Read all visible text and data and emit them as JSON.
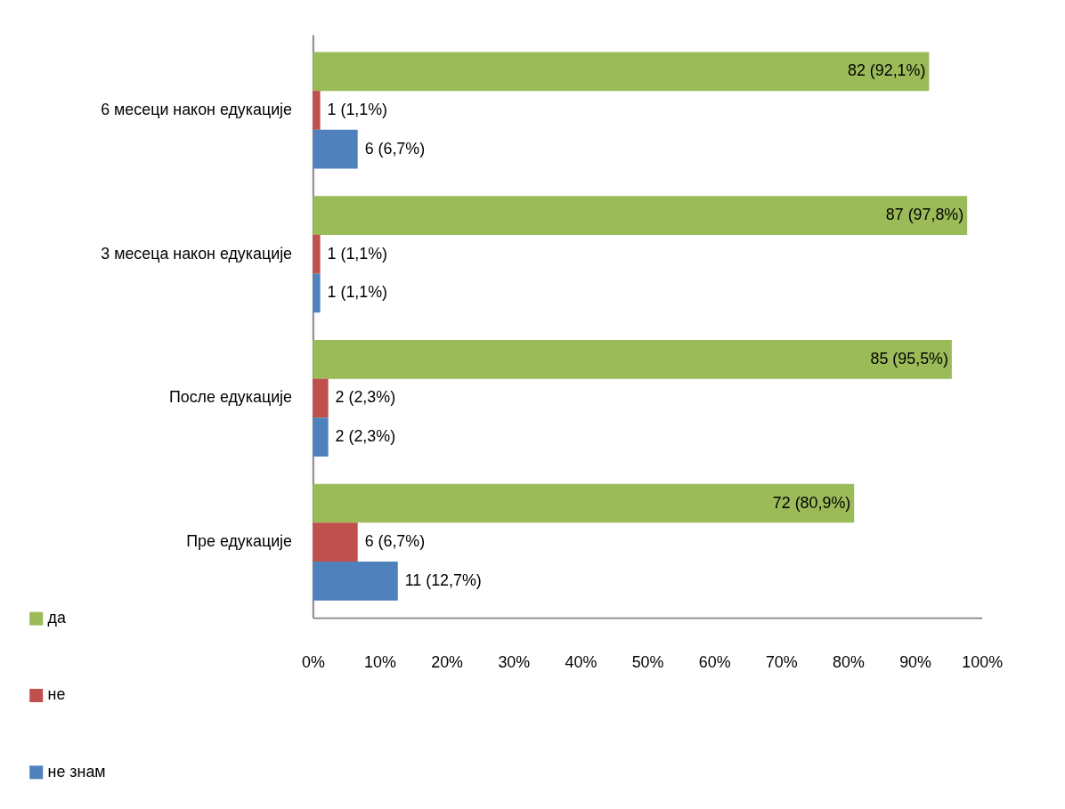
{
  "chart_data": {
    "type": "bar",
    "orientation": "horizontal",
    "categories": [
      "6 месеци након едукације",
      "3 месеца након едукације",
      "После едукације",
      "Пре едукације"
    ],
    "series": [
      {
        "name": "да",
        "color": "#9bbb59",
        "values": [
          92.1,
          97.8,
          95.5,
          80.9
        ],
        "value_labels": [
          "82 (92,1%)",
          "87 (97,8%)",
          "85 (95,5%)",
          "72 (80,9%)"
        ]
      },
      {
        "name": "не",
        "color": "#c0504d",
        "values": [
          1.1,
          1.1,
          2.3,
          6.7
        ],
        "value_labels": [
          "1 (1,1%)",
          "1 (1,1%)",
          "2 (2,3%)",
          "6 (6,7%)"
        ]
      },
      {
        "name": "не знам",
        "color": "#4f81bd",
        "values": [
          6.7,
          1.1,
          2.3,
          12.7
        ],
        "value_labels": [
          "6 (6,7%)",
          "1 (1,1%)",
          "2 (2,3%)",
          "11 (12,7%)"
        ]
      }
    ],
    "xlim": [
      0,
      100
    ],
    "xticks": [
      {
        "value": 0,
        "label": "0%"
      },
      {
        "value": 10,
        "label": "10%"
      },
      {
        "value": 20,
        "label": "20%"
      },
      {
        "value": 30,
        "label": "30%"
      },
      {
        "value": 40,
        "label": "40%"
      },
      {
        "value": 50,
        "label": "50%"
      },
      {
        "value": 60,
        "label": "60%"
      },
      {
        "value": 70,
        "label": "70%"
      },
      {
        "value": 80,
        "label": "80%"
      },
      {
        "value": 90,
        "label": "90%"
      },
      {
        "value": 100,
        "label": "100%"
      }
    ],
    "legend": "bottom left"
  }
}
